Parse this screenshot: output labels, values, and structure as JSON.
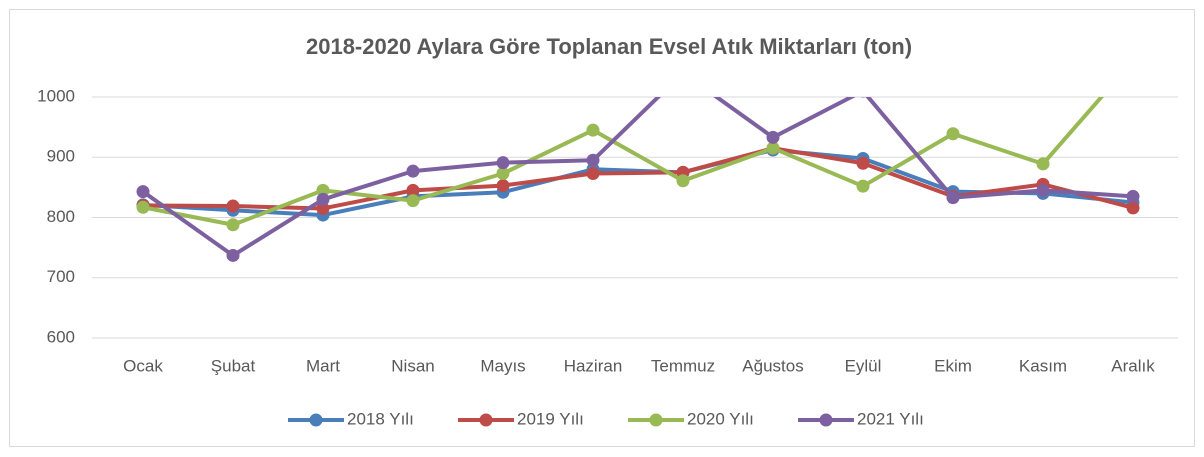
{
  "chart_data": {
    "type": "line",
    "title": "2018-2020 Aylara Göre Toplanan Evsel Atık Miktarları (ton)",
    "categories": [
      "Ocak",
      "Şubat",
      "Mart",
      "Nisan",
      "Mayıs",
      "Haziran",
      "Temmuz",
      "Ağustos",
      "Eylül",
      "Ekim",
      "Kasım",
      "Aralık"
    ],
    "series": [
      {
        "name": "2018 Yılı",
        "color": "#4a7ebb",
        "values": [
          821,
          812,
          804,
          835,
          842,
          880,
          875,
          912,
          898,
          843,
          840,
          825
        ]
      },
      {
        "name": "2019 Yılı",
        "color": "#be4b48",
        "values": [
          820,
          819,
          815,
          845,
          853,
          873,
          875,
          915,
          890,
          835,
          855,
          816
        ]
      },
      {
        "name": "2020 Yılı",
        "color": "#98b954",
        "values": [
          817,
          788,
          845,
          828,
          873,
          945,
          861,
          915,
          852,
          939,
          889,
          1060
        ]
      },
      {
        "name": "2021 Yılı",
        "color": "#7d60a0",
        "values": [
          843,
          737,
          830,
          877,
          891,
          895,
          1040,
          933,
          1010,
          833,
          845,
          835
        ]
      }
    ],
    "ylim": [
      600,
      1000
    ],
    "yticks": [
      600,
      700,
      800,
      900,
      1000
    ],
    "grid": true,
    "legend": "bottom"
  }
}
